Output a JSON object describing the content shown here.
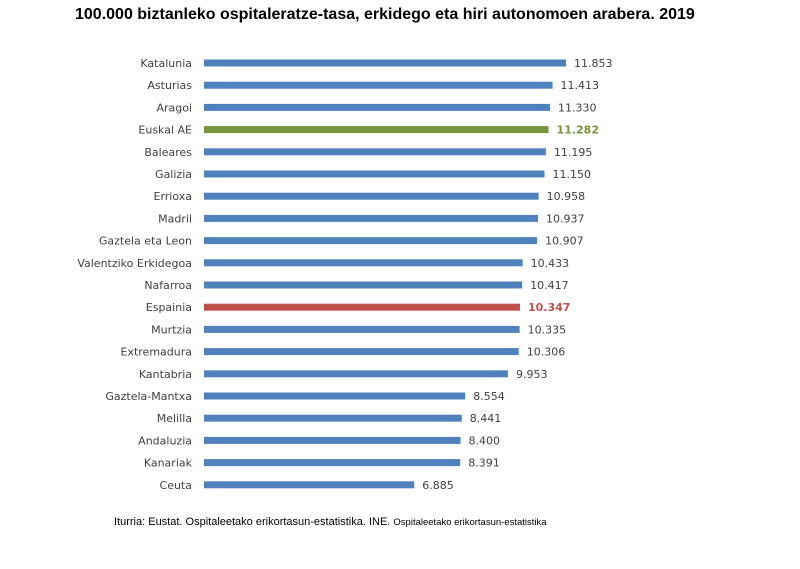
{
  "chart_data": {
    "type": "bar",
    "orientation": "horizontal",
    "title": "100.000 biztanleko ospitaleratze-tasa, erkidego eta hiri autonomoen arabera. 2019",
    "categories": [
      "Katalunia",
      "Asturias",
      "Aragoi",
      "Euskal AE",
      "Baleares",
      "Galizia",
      "Errioxa",
      "Madril",
      "Gaztela eta Leon",
      "Valentziko Erkidegoa",
      "Nafarroa",
      "Espainia",
      "Murtzia",
      "Extremadura",
      "Kantabria",
      "Gaztela-Mantxa",
      "Melilla",
      "Andaluzia",
      "Kanariak",
      "Ceuta"
    ],
    "values": [
      11853,
      11413,
      11330,
      11282,
      11195,
      11150,
      10958,
      10937,
      10907,
      10433,
      10417,
      10347,
      10335,
      10306,
      9953,
      8554,
      8441,
      8400,
      8391,
      6885
    ],
    "value_labels": [
      "11.853",
      "11.413",
      "11.330",
      "11.282",
      "11.195",
      "11.150",
      "10.958",
      "10.937",
      "10.907",
      "10.433",
      "10.417",
      "10.347",
      "10.335",
      "10.306",
      "9.953",
      "8.554",
      "8.441",
      "8.400",
      "8.391",
      "6.885"
    ],
    "highlight": {
      "Euskal AE": "#77933C",
      "Espainia": "#C0504D"
    },
    "default_color": "#4F81BD",
    "xlim": [
      0,
      11853
    ],
    "grid": false,
    "xlabel": "",
    "ylabel": ""
  },
  "source": {
    "main": "Iturria: Eustat. Ospitaleetako erikortasun-estatistika. INE.",
    "secondary": "Ospitaleetako erikortasun-estatistika"
  }
}
